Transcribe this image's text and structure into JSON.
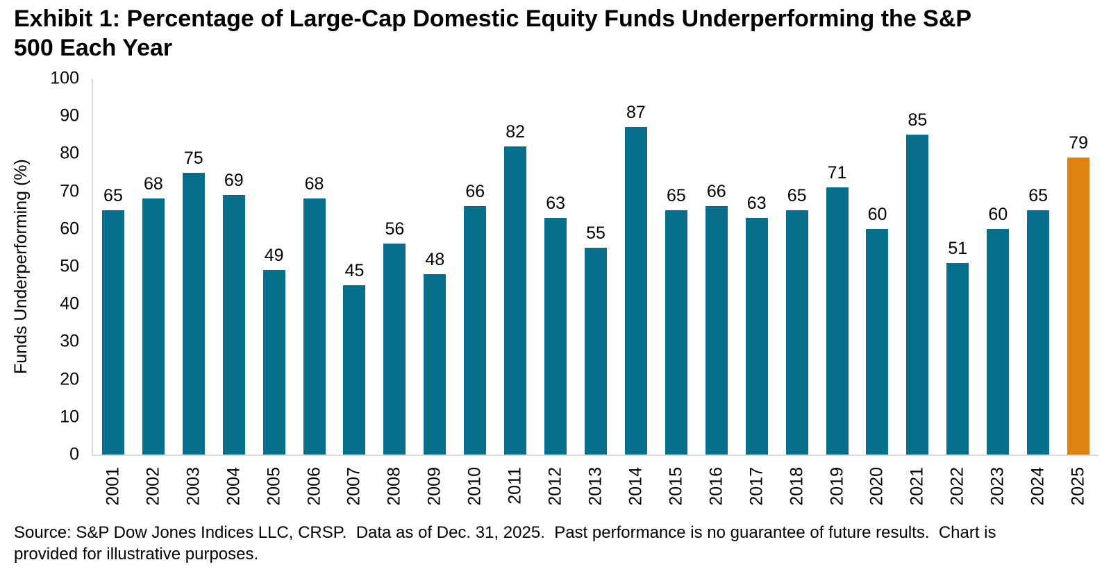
{
  "title": "Exhibit 1: Percentage of Large-Cap Domestic Equity Funds Underperforming the S&P 500 Each Year",
  "source_note": "Source: S&P Dow Jones Indices LLC, CRSP.  Data as of Dec. 31, 2025.  Past performance is no guarantee of future results.  Chart is provided for illustrative purposes.",
  "colors": {
    "bar": "#076E8C",
    "highlight": "#E08210",
    "axis_line": "#D9D9D9",
    "text": "#000000"
  },
  "chart_data": {
    "type": "bar",
    "title": "Exhibit 1: Percentage of Large-Cap Domestic Equity Funds Underperforming the S&P 500 Each Year",
    "categories": [
      "2001",
      "2002",
      "2003",
      "2004",
      "2005",
      "2006",
      "2007",
      "2008",
      "2009",
      "2010",
      "2011",
      "2012",
      "2013",
      "2014",
      "2015",
      "2016",
      "2017",
      "2018",
      "2019",
      "2020",
      "2021",
      "2022",
      "2023",
      "2024",
      "2025"
    ],
    "values": [
      65,
      68,
      75,
      69,
      49,
      68,
      45,
      56,
      48,
      66,
      82,
      63,
      55,
      87,
      65,
      66,
      63,
      65,
      71,
      60,
      85,
      51,
      60,
      65,
      79
    ],
    "xlabel": "",
    "ylabel": "Funds Underperforming (%)",
    "ylim": [
      0,
      100
    ],
    "y_ticks": [
      0,
      10,
      20,
      30,
      40,
      50,
      60,
      70,
      80,
      90,
      100
    ],
    "grid": false,
    "legend": "none",
    "data_labels": true,
    "bar_color": "#076E8C",
    "highlight_category": "2025",
    "highlight_color": "#E08210"
  }
}
